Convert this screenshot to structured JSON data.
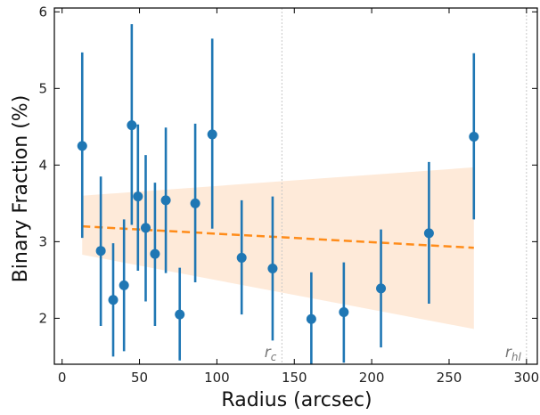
{
  "chart_data": {
    "type": "scatter",
    "xlabel": "Radius (arcsec)",
    "ylabel": "Binary Fraction (%)",
    "xlim": [
      -5,
      307
    ],
    "ylim": [
      1.4,
      6.05
    ],
    "xticks": [
      0,
      50,
      100,
      150,
      200,
      250,
      300
    ],
    "yticks": [
      2,
      3,
      4,
      5,
      6
    ],
    "grid": false,
    "colors": {
      "points": "#1f77b4",
      "trend": "#ff8c1a",
      "band": "#fde3cc",
      "reference_lines": "#c8c8c8"
    },
    "points": [
      {
        "x": 13,
        "y": 4.25,
        "err_low": 3.05,
        "err_high": 5.47
      },
      {
        "x": 25,
        "y": 2.88,
        "err_low": 1.9,
        "err_high": 3.85
      },
      {
        "x": 33,
        "y": 2.24,
        "err_low": 1.5,
        "err_high": 2.98
      },
      {
        "x": 40,
        "y": 2.43,
        "err_low": 1.57,
        "err_high": 3.29
      },
      {
        "x": 45,
        "y": 4.52,
        "err_low": 3.22,
        "err_high": 5.84
      },
      {
        "x": 49,
        "y": 3.59,
        "err_low": 2.62,
        "err_high": 4.53
      },
      {
        "x": 54,
        "y": 3.18,
        "err_low": 2.22,
        "err_high": 4.13
      },
      {
        "x": 60,
        "y": 2.84,
        "err_low": 1.9,
        "err_high": 3.77
      },
      {
        "x": 67,
        "y": 3.54,
        "err_low": 2.59,
        "err_high": 4.49
      },
      {
        "x": 76,
        "y": 2.05,
        "err_low": 1.45,
        "err_high": 2.66
      },
      {
        "x": 86,
        "y": 3.5,
        "err_low": 2.47,
        "err_high": 4.54
      },
      {
        "x": 97,
        "y": 4.4,
        "err_low": 3.17,
        "err_high": 5.65
      },
      {
        "x": 116,
        "y": 2.79,
        "err_low": 2.05,
        "err_high": 3.54
      },
      {
        "x": 136,
        "y": 2.65,
        "err_low": 1.71,
        "err_high": 3.59
      },
      {
        "x": 161,
        "y": 1.99,
        "err_low": 1.4,
        "err_high": 2.6
      },
      {
        "x": 182,
        "y": 2.08,
        "err_low": 1.42,
        "err_high": 2.73
      },
      {
        "x": 206,
        "y": 2.39,
        "err_low": 1.62,
        "err_high": 3.16
      },
      {
        "x": 237,
        "y": 3.11,
        "err_low": 2.19,
        "err_high": 4.04
      },
      {
        "x": 266,
        "y": 4.37,
        "err_low": 3.29,
        "err_high": 5.46
      }
    ],
    "trend_line": {
      "style": "dashed",
      "x": [
        13,
        266
      ],
      "y": [
        3.2,
        2.92
      ]
    },
    "confidence_band": {
      "x": [
        13,
        266
      ],
      "upper": [
        3.6,
        3.97
      ],
      "lower": [
        2.83,
        1.86
      ]
    },
    "reference_lines": [
      {
        "x": 142,
        "label": "r",
        "sub": "c"
      },
      {
        "x": 300,
        "label": "r",
        "sub": "hl"
      }
    ]
  }
}
